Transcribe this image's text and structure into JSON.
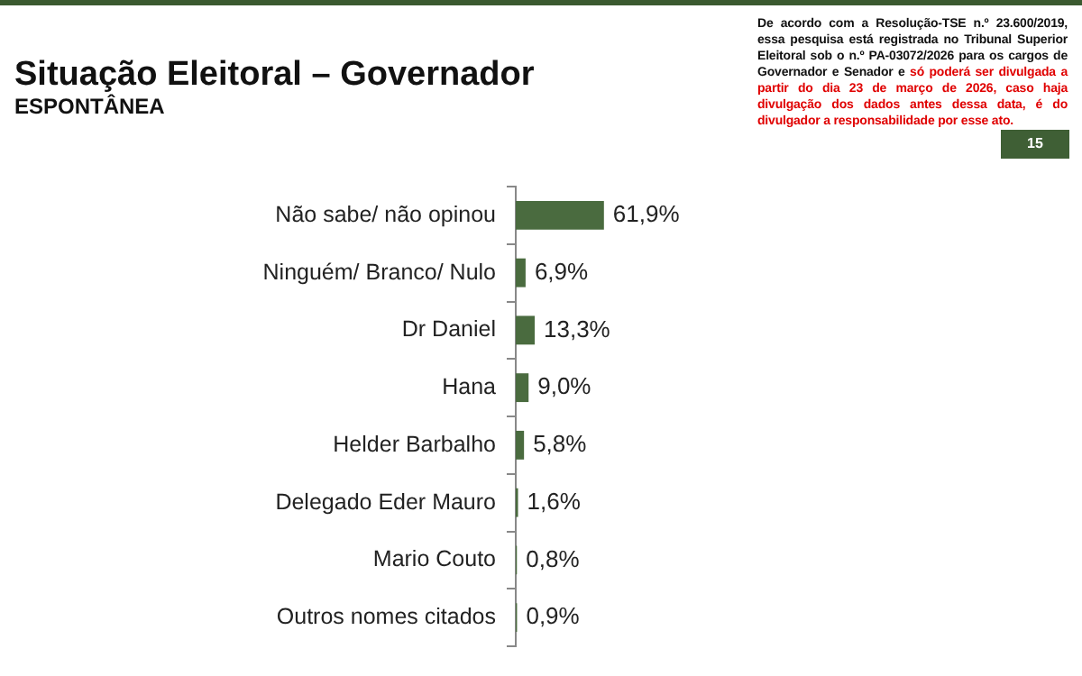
{
  "chart_data": {
    "type": "bar",
    "orientation": "horizontal",
    "title": "Situação Eleitoral – Governador",
    "subtitle": "ESPONTÂNEA",
    "categories": [
      "Não sabe/ não opinou",
      "Ninguém/ Branco/ Nulo",
      "Dr Daniel",
      "Hana",
      "Helder Barbalho",
      "Delegado Eder Mauro",
      "Mario Couto",
      "Outros nomes citados"
    ],
    "values": [
      61.9,
      6.9,
      13.3,
      9.0,
      5.8,
      1.6,
      0.8,
      0.9
    ],
    "value_labels": [
      "61,9%",
      "6,9%",
      "13,3%",
      "9,0%",
      "5,8%",
      "1,6%",
      "0,8%",
      "0,9%"
    ],
    "color": "#4a6b3f",
    "legend": false,
    "tick_labels": "y",
    "annotations": [
      "De acordo com a Resolução-TSE n.º 23.600/2019, essa pesquisa está registrada no Tribunal Superior Eleitoral sob o n.º PA-03072/2026 para os cargos de Governador e Senador e",
      "só poderá ser divulgada a partir do dia 23 de março de 2026, caso haja divulgação dos dados antes dessa data, é do divulgador a responsabilidade por esse ato.",
      "15"
    ]
  }
}
